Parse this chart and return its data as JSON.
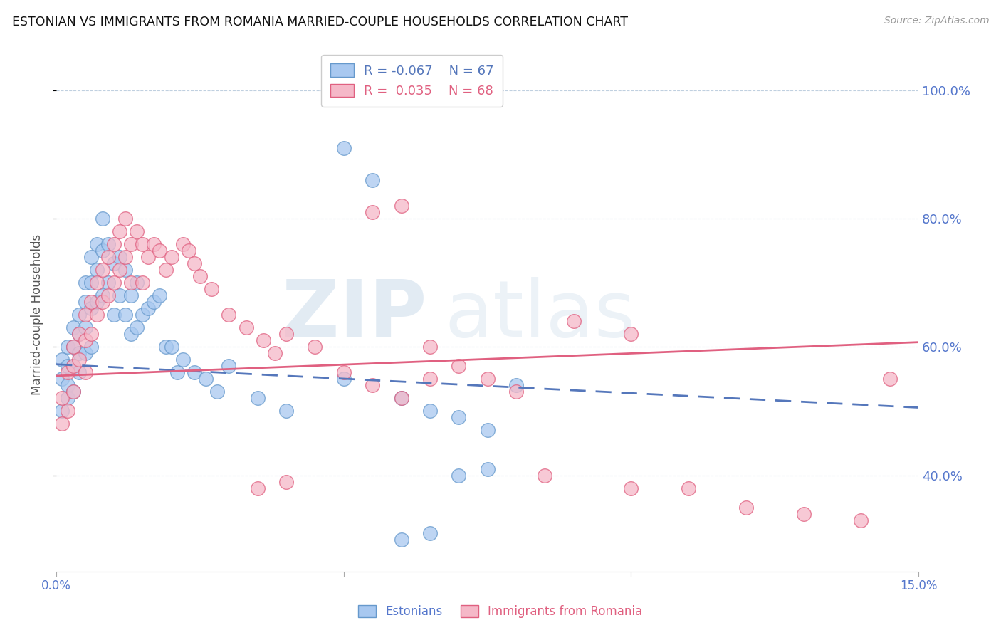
{
  "title": "ESTONIAN VS IMMIGRANTS FROM ROMANIA MARRIED-COUPLE HOUSEHOLDS CORRELATION CHART",
  "source": "Source: ZipAtlas.com",
  "ylabel": "Married-couple Households",
  "xmin": 0.0,
  "xmax": 0.15,
  "ymin": 0.25,
  "ymax": 1.05,
  "color_estonian_face": "#a8c8f0",
  "color_estonian_edge": "#6699cc",
  "color_romania_face": "#f5b8c8",
  "color_romania_edge": "#e06080",
  "color_line_estonian": "#5577bb",
  "color_line_romania": "#e06080",
  "color_axis_labels": "#5577cc",
  "estonian_intercept": 0.573,
  "estonian_slope": -0.45,
  "romania_intercept": 0.555,
  "romania_slope": 0.35,
  "estonian_x": [
    0.001,
    0.001,
    0.001,
    0.002,
    0.002,
    0.002,
    0.002,
    0.003,
    0.003,
    0.003,
    0.003,
    0.004,
    0.004,
    0.004,
    0.004,
    0.005,
    0.005,
    0.005,
    0.005,
    0.006,
    0.006,
    0.006,
    0.006,
    0.007,
    0.007,
    0.007,
    0.008,
    0.008,
    0.008,
    0.009,
    0.009,
    0.01,
    0.01,
    0.011,
    0.011,
    0.012,
    0.012,
    0.013,
    0.013,
    0.014,
    0.014,
    0.015,
    0.016,
    0.017,
    0.018,
    0.019,
    0.02,
    0.021,
    0.022,
    0.024,
    0.026,
    0.028,
    0.03,
    0.035,
    0.04,
    0.05,
    0.06,
    0.065,
    0.07,
    0.075,
    0.05,
    0.055,
    0.06,
    0.065,
    0.07,
    0.075,
    0.08
  ],
  "estonian_y": [
    0.55,
    0.58,
    0.5,
    0.6,
    0.57,
    0.54,
    0.52,
    0.63,
    0.6,
    0.57,
    0.53,
    0.65,
    0.62,
    0.59,
    0.56,
    0.7,
    0.67,
    0.63,
    0.59,
    0.74,
    0.7,
    0.66,
    0.6,
    0.76,
    0.72,
    0.67,
    0.8,
    0.75,
    0.68,
    0.76,
    0.7,
    0.73,
    0.65,
    0.74,
    0.68,
    0.72,
    0.65,
    0.68,
    0.62,
    0.7,
    0.63,
    0.65,
    0.66,
    0.67,
    0.68,
    0.6,
    0.6,
    0.56,
    0.58,
    0.56,
    0.55,
    0.53,
    0.57,
    0.52,
    0.5,
    0.55,
    0.52,
    0.5,
    0.49,
    0.47,
    0.91,
    0.86,
    0.3,
    0.31,
    0.4,
    0.41,
    0.54
  ],
  "romania_x": [
    0.001,
    0.001,
    0.002,
    0.002,
    0.003,
    0.003,
    0.003,
    0.004,
    0.004,
    0.005,
    0.005,
    0.005,
    0.006,
    0.006,
    0.007,
    0.007,
    0.008,
    0.008,
    0.009,
    0.009,
    0.01,
    0.01,
    0.011,
    0.011,
    0.012,
    0.012,
    0.013,
    0.013,
    0.014,
    0.015,
    0.015,
    0.016,
    0.017,
    0.018,
    0.019,
    0.02,
    0.022,
    0.023,
    0.024,
    0.025,
    0.027,
    0.03,
    0.033,
    0.036,
    0.038,
    0.04,
    0.045,
    0.05,
    0.055,
    0.06,
    0.065,
    0.09,
    0.1,
    0.055,
    0.06,
    0.065,
    0.07,
    0.075,
    0.08,
    0.085,
    0.035,
    0.04,
    0.1,
    0.11,
    0.12,
    0.13,
    0.14,
    0.145
  ],
  "romania_y": [
    0.52,
    0.48,
    0.56,
    0.5,
    0.6,
    0.57,
    0.53,
    0.62,
    0.58,
    0.65,
    0.61,
    0.56,
    0.67,
    0.62,
    0.7,
    0.65,
    0.72,
    0.67,
    0.74,
    0.68,
    0.76,
    0.7,
    0.78,
    0.72,
    0.8,
    0.74,
    0.76,
    0.7,
    0.78,
    0.76,
    0.7,
    0.74,
    0.76,
    0.75,
    0.72,
    0.74,
    0.76,
    0.75,
    0.73,
    0.71,
    0.69,
    0.65,
    0.63,
    0.61,
    0.59,
    0.62,
    0.6,
    0.56,
    0.54,
    0.52,
    0.55,
    0.64,
    0.62,
    0.81,
    0.82,
    0.6,
    0.57,
    0.55,
    0.53,
    0.4,
    0.38,
    0.39,
    0.38,
    0.38,
    0.35,
    0.34,
    0.33,
    0.55
  ]
}
